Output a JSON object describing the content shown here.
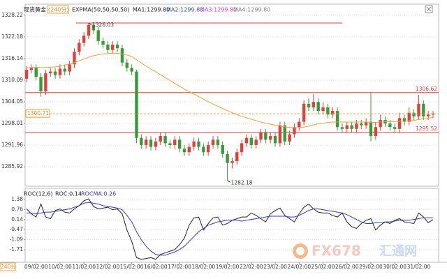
{
  "chart_data": [
    {
      "type": "candlestick",
      "title": "现货黄金",
      "subtitle": "(240分)",
      "indicator_labels": [
        "MA1:1299.80",
        "MA2:1299.80",
        "MA3:1299.80",
        "MA4:1299.80"
      ],
      "categories": [
        null,
        null,
        "09/02:00",
        null,
        null,
        null,
        null,
        "10/02:00",
        null,
        null,
        null,
        null,
        "11/02:00",
        null,
        null,
        null,
        null,
        "12/02:00",
        null,
        null,
        null,
        null,
        "15/02:00",
        null,
        null,
        null,
        null,
        "16/02:00",
        null,
        null,
        null,
        null,
        "17/02:00",
        null,
        null,
        null,
        null,
        "18/02:00",
        null,
        null,
        null,
        null,
        "19/02:00",
        null,
        null,
        null,
        null,
        "22/02:00",
        null,
        null,
        null,
        null,
        "23/02:00",
        null,
        null,
        null,
        null,
        "24/02:00",
        null,
        null,
        null,
        null,
        "25/02:00",
        null,
        null,
        null,
        null,
        "26/02:00",
        null,
        null,
        null,
        null,
        "29/02:00",
        null,
        null,
        null,
        null,
        "30/02:00",
        null,
        null,
        null,
        null,
        "31/02:00",
        null,
        null,
        null
      ],
      "open": [
        1310.5,
        1313.0,
        1313.5,
        1311.0,
        1307.0,
        1312.0,
        1312.5,
        1311.5,
        1313.3,
        1312.5,
        1314.5,
        1318.0,
        1320.5,
        1322.5,
        1325.5,
        1324.0,
        1321.0,
        1320.0,
        1318.5,
        1320.0,
        1319.0,
        1315.0,
        1313.5,
        1312.5,
        1294.0,
        1292.0,
        1293.5,
        1291.5,
        1293.0,
        1294.5,
        1292.5,
        1292.0,
        1293.5,
        1291.0,
        1290.0,
        1291.5,
        1293.0,
        1291.5,
        1290.0,
        1292.0,
        1293.5,
        1292.0,
        1289.5,
        1287.0,
        1287.5,
        1290.0,
        1292.5,
        1294.0,
        1292.0,
        1293.5,
        1295.5,
        1293.5,
        1294.5,
        1292.5,
        1297.5,
        1293.0,
        1295.0,
        1297.0,
        1298.5,
        1303.5,
        1302.5,
        1304.0,
        1301.5,
        1302.5,
        1300.5,
        1301.5,
        1297.0,
        1296.5,
        1297.5,
        1296.5,
        1298.0,
        1297.5,
        1298.5,
        1294.5,
        1297.0,
        1299.0,
        1298.0,
        1297.0,
        1296.5,
        1299.5,
        1298.5,
        1301.0,
        1300.0,
        1303.5,
        1300.0,
        1300.5
      ],
      "high": [
        1314,
        1314.5,
        1314.5,
        1312,
        1313,
        1313.5,
        1313.5,
        1314.5,
        1314.5,
        1315.5,
        1319,
        1321.5,
        1323.5,
        1326.03,
        1325.8,
        1325,
        1322,
        1321,
        1321,
        1321,
        1320,
        1316,
        1314.5,
        1313,
        1295,
        1294.5,
        1294.5,
        1294,
        1295.5,
        1295.5,
        1293.5,
        1294.5,
        1294.5,
        1292,
        1292.5,
        1294,
        1294,
        1292.5,
        1293,
        1294.5,
        1294.5,
        1293,
        1290.5,
        1288.5,
        1291,
        1293.5,
        1295,
        1295,
        1294.5,
        1296.5,
        1296.5,
        1295.5,
        1295.5,
        1298.5,
        1298.5,
        1296,
        1298,
        1299.5,
        1304.5,
        1305,
        1306.2,
        1305,
        1304,
        1303.5,
        1302.5,
        1302.5,
        1298,
        1298.5,
        1298.5,
        1299,
        1299,
        1299.5,
        1306.5,
        1298.5,
        1300.5,
        1300,
        1299,
        1298,
        1301,
        1300.5,
        1302.5,
        1302,
        1306,
        1304.5,
        1301.5,
        1301.5
      ],
      "low": [
        1309.5,
        1312,
        1310,
        1305.5,
        1306,
        1311,
        1310.5,
        1310.5,
        1311.5,
        1311.5,
        1313.5,
        1317,
        1319.5,
        1321.5,
        1323,
        1320,
        1319,
        1317.5,
        1317.5,
        1318,
        1314,
        1312.5,
        1311.5,
        1292.5,
        1291,
        1291,
        1290.5,
        1290.5,
        1292,
        1291.5,
        1291,
        1291,
        1290,
        1289,
        1289,
        1290.5,
        1290.5,
        1289,
        1289,
        1291,
        1291,
        1288.5,
        1282.18,
        1285.5,
        1286.5,
        1289,
        1291.5,
        1291,
        1291,
        1292.5,
        1292.5,
        1292.5,
        1291.5,
        1291.5,
        1292,
        1292,
        1294,
        1296,
        1297.5,
        1301.5,
        1301.5,
        1300.5,
        1300.5,
        1299.5,
        1299.5,
        1296,
        1295.5,
        1295.5,
        1295.5,
        1295.5,
        1296.5,
        1296.5,
        1293,
        1293.5,
        1296,
        1297,
        1296,
        1295.5,
        1295.5,
        1297.5,
        1297.5,
        1299,
        1299,
        1299,
        1299,
        1299.5
      ],
      "close": [
        1313.0,
        1313.5,
        1311.0,
        1307.0,
        1312.0,
        1312.5,
        1311.5,
        1313.3,
        1312.5,
        1314.5,
        1318.0,
        1320.5,
        1322.5,
        1325.5,
        1324.0,
        1321.0,
        1320.0,
        1318.5,
        1320.0,
        1319.0,
        1315.0,
        1313.5,
        1312.5,
        1294.0,
        1292.0,
        1293.5,
        1291.5,
        1293.0,
        1294.5,
        1292.5,
        1292.0,
        1293.5,
        1291.0,
        1290.0,
        1291.5,
        1293.0,
        1291.5,
        1290.0,
        1292.0,
        1293.5,
        1292.0,
        1289.5,
        1287.0,
        1287.5,
        1290.0,
        1292.5,
        1294.0,
        1292.0,
        1293.5,
        1295.5,
        1293.5,
        1294.5,
        1292.5,
        1297.5,
        1293.0,
        1295.0,
        1297.0,
        1298.5,
        1303.5,
        1302.5,
        1304.0,
        1301.5,
        1302.5,
        1300.5,
        1301.5,
        1297.0,
        1296.5,
        1297.5,
        1296.5,
        1298.0,
        1297.5,
        1298.5,
        1294.5,
        1297.0,
        1299.0,
        1298.0,
        1297.0,
        1296.5,
        1299.5,
        1298.5,
        1301.0,
        1300.0,
        1303.5,
        1300.0,
        1300.5,
        1300.71
      ],
      "up_color": "#e0403a",
      "down_color": "#3a9a3a",
      "series": [
        {
          "name": "EXPMA(50,50,50,50)",
          "color": "#f0a040",
          "values": [
            1313.5,
            1313.6,
            1313.7,
            1313.6,
            1313.6,
            1313.7,
            1313.8,
            1314.0,
            1314.3,
            1314.6,
            1315.0,
            1315.5,
            1316.0,
            1316.5,
            1316.9,
            1317.2,
            1317.4,
            1317.5,
            1317.6,
            1317.6,
            1317.4,
            1317.1,
            1316.7,
            1315.8,
            1314.9,
            1314.0,
            1313.2,
            1312.4,
            1311.6,
            1310.8,
            1310.0,
            1309.2,
            1308.4,
            1307.6,
            1306.9,
            1306.2,
            1305.5,
            1304.8,
            1304.1,
            1303.4,
            1302.8,
            1302.2,
            1301.6,
            1301.0,
            1300.5,
            1300.0,
            1299.6,
            1299.2,
            1298.8,
            1298.4,
            1298.1,
            1297.8,
            1297.5,
            1297.3,
            1297.1,
            1296.9,
            1296.8,
            1296.8,
            1297.0,
            1297.3,
            1297.6,
            1297.9,
            1298.1,
            1298.3,
            1298.4,
            1298.4,
            1298.4,
            1298.4,
            1298.4,
            1298.4,
            1298.4,
            1298.4,
            1298.3,
            1298.3,
            1298.4,
            1298.5,
            1298.5,
            1298.5,
            1298.6,
            1298.7,
            1298.8,
            1298.9,
            1299.1,
            1299.3,
            1299.5,
            1299.7
          ]
        }
      ],
      "hlines": [
        1306.62,
        1295.52
      ],
      "hline_color": "#d94040",
      "price_line_color": "#f0a040",
      "ylim": [
        1280.9,
        1330.9
      ],
      "yticks": [
        1328.22,
        1322.18,
        1316.14,
        1310.09,
        1304.05,
        1298.01,
        1291.96,
        1285.92
      ],
      "grid": true
    },
    {
      "type": "line",
      "indicator_labels": [
        "ROC(12,6)",
        "ROC:0.14",
        "ROCMA:0.26"
      ],
      "series": [
        {
          "color": "#222222",
          "values": [
            0.8,
            0.5,
            0.3,
            1.1,
            0.3,
            0.2,
            0.7,
            0.8,
            0.6,
            0.55,
            0.8,
            1.0,
            1.3,
            1.42,
            0.95,
            0.8,
            0.85,
            0.9,
            0.75,
            0.8,
            0.5,
            -0.5,
            -1.2,
            -2.2,
            -2.3,
            -2.25,
            -2.2,
            -2.3,
            -2.0,
            -1.9,
            -1.8,
            -1.7,
            -1.4,
            -1.0,
            -0.2,
            0.25,
            0.3,
            -0.5,
            -0.1,
            0.25,
            0.3,
            -0.2,
            -0.1,
            0.1,
            0.2,
            0.3,
            0.3,
            0.55,
            0.4,
            0.2,
            0.0,
            0.5,
            0.7,
            0.85,
            0.4,
            0.2,
            0.0,
            0.5,
            0.9,
            1.1,
            0.8,
            0.6,
            0.55,
            0.55,
            0.4,
            0.3,
            0.55,
            0.0,
            -0.3,
            -0.4,
            -0.1,
            0.1,
            0.2,
            -0.5,
            -0.2,
            0.0,
            -0.1,
            0.1,
            0.2,
            0.0,
            -0.05,
            -0.1,
            0.55,
            0.3,
            -0.05,
            0.14
          ]
        },
        {
          "color": "#3a3aa8",
          "values": [
            0.55,
            0.55,
            0.5,
            0.55,
            0.6,
            0.6,
            0.65,
            0.7,
            0.75,
            0.8,
            0.9,
            1.0,
            1.15,
            1.2,
            1.15,
            1.1,
            1.0,
            0.95,
            0.9,
            0.85,
            0.75,
            0.4,
            0.0,
            -0.6,
            -1.1,
            -1.5,
            -1.8,
            -2.0,
            -2.05,
            -2.05,
            -1.95,
            -1.85,
            -1.7,
            -1.5,
            -1.2,
            -0.9,
            -0.6,
            -0.4,
            -0.2,
            -0.1,
            0.0,
            0.05,
            0.1,
            0.1,
            0.1,
            0.05,
            0.1,
            0.15,
            0.2,
            0.25,
            0.3,
            0.35,
            0.35,
            0.35,
            0.35,
            0.3,
            0.3,
            0.4,
            0.55,
            0.7,
            0.8,
            0.8,
            0.75,
            0.7,
            0.65,
            0.6,
            0.55,
            0.45,
            0.3,
            0.15,
            0.0,
            -0.1,
            -0.1,
            -0.05,
            -0.05,
            0.0,
            0.0,
            0.05,
            0.1,
            0.1,
            0.1,
            0.15,
            0.2,
            0.25,
            0.25,
            0.26
          ]
        }
      ],
      "ylim": [
        -2.44,
        1.98
      ],
      "yticks": [
        1.38,
        0.76,
        0.14,
        -0.47,
        -1.09,
        -1.71
      ],
      "grid": true
    }
  ],
  "period_label": "240分",
  "watermark": {
    "brand": "FX678",
    "name": "汇通网"
  }
}
